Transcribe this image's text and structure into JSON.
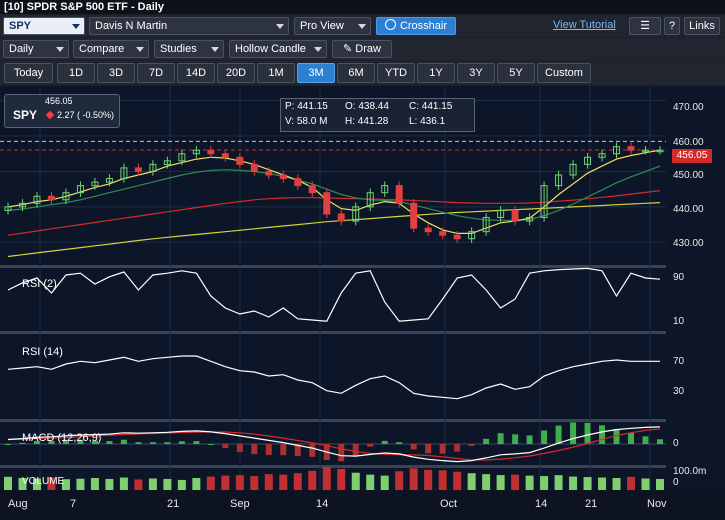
{
  "window": {
    "title": "[10]  SPDR S&P 500 ETF - Daily"
  },
  "toolbar1": {
    "symbol": "SPY",
    "account": "Davis N Martin",
    "view": "Pro View",
    "crosshair_label": "Crosshair",
    "tutorial_link": "View Tutorial",
    "help_label": "?",
    "links_label": "Links"
  },
  "toolbar2": {
    "interval": "Daily",
    "compare": "Compare",
    "studies": "Studies",
    "chart_style": "Hollow Candle",
    "draw": "Draw"
  },
  "ranges": {
    "today": "Today",
    "items": [
      "1D",
      "3D",
      "7D",
      "14D",
      "20D",
      "1M",
      "3M",
      "6M",
      "YTD",
      "1Y",
      "3Y",
      "5Y"
    ],
    "custom": "Custom",
    "active": "3M"
  },
  "quote": {
    "symbol": "SPY",
    "price": "456.05",
    "change": "2.27 ( -0.50%)",
    "direction_color": "#ff3b3b"
  },
  "ohlc": {
    "p": "P: 441.15",
    "o": "O: 438.44",
    "c": "C: 441.15",
    "v": "V: 58.0 M",
    "h": "H: 441.28",
    "l": "L: 436.1"
  },
  "price_axis": {
    "ticks": [
      "470.00",
      "460.00",
      "450.00",
      "440.00",
      "430.00"
    ],
    "last_price": "456.05"
  },
  "panels": {
    "rsi2": {
      "label": "RSI (2)",
      "ticks": [
        "90",
        "10"
      ]
    },
    "rsi14": {
      "label": "RSI (14)",
      "ticks": [
        "70",
        "30"
      ]
    },
    "macd": {
      "label": "MACD (12,26,9)",
      "ticks": [
        "0"
      ]
    },
    "volume": {
      "label": "VOLUME",
      "ticks": [
        "100.0m",
        "0"
      ]
    }
  },
  "x_axis": {
    "labels": [
      "Aug",
      "7",
      "21",
      "Sep",
      "14",
      "Oct",
      "14",
      "21",
      "Nov"
    ]
  },
  "chart_data": {
    "type": "candlestick",
    "title": "SPDR S&P 500 ETF - Daily",
    "ylim": [
      425,
      473
    ],
    "y_ticks": [
      430,
      440,
      450,
      460,
      470
    ],
    "close": [
      440,
      441,
      443,
      442,
      444,
      446,
      447,
      448,
      451,
      450,
      452,
      453,
      455,
      456,
      455,
      454,
      452,
      450,
      449,
      448,
      446,
      444,
      438,
      436,
      440,
      444,
      446,
      441,
      434,
      433,
      432,
      431,
      433,
      437,
      439,
      436,
      437,
      446,
      449,
      452,
      454,
      455,
      457,
      456,
      456,
      456
    ],
    "ma_short": [
      440,
      440.6,
      441.5,
      442,
      443,
      444.2,
      445.5,
      446.5,
      448,
      449,
      450,
      451.5,
      452.5,
      453.5,
      454,
      453.8,
      453,
      452,
      450.5,
      449,
      447.5,
      445.5,
      442,
      439.5,
      439,
      440.5,
      441.5,
      441,
      438,
      435.5,
      433.5,
      432.5,
      432.5,
      434,
      435.5,
      436,
      436.8,
      440,
      443.5,
      446.5,
      449.5,
      451.5,
      453.5,
      454.5,
      455.3,
      456
    ],
    "ma_medium": [
      439,
      439.4,
      440,
      440.6,
      441.2,
      442,
      443,
      444,
      445,
      446,
      447,
      448,
      449,
      449.8,
      450.3,
      450.5,
      450.3,
      450,
      449.4,
      448.6,
      447.6,
      446.5,
      445,
      443.5,
      442.5,
      442,
      441.8,
      441.5,
      440.5,
      439.5,
      438.5,
      437.5,
      436.8,
      436.3,
      436.2,
      436.2,
      436.4,
      437.5,
      439,
      440.8,
      442.8,
      444.8,
      446.8,
      448.5,
      450,
      451.5
    ],
    "ma_long": [
      432,
      432.6,
      433.2,
      433.8,
      434.4,
      435,
      435.6,
      436.2,
      436.8,
      437.4,
      438,
      438.6,
      439.2,
      439.8,
      440.4,
      441,
      441.5,
      442,
      442.3,
      442.5,
      442.6,
      442.6,
      442.5,
      442.4,
      442.3,
      442.2,
      442.1,
      442,
      441.8,
      441.6,
      441.4,
      441.2,
      441.1,
      441,
      441,
      441,
      441.1,
      441.3,
      441.6,
      441.9,
      442.3,
      442.7,
      443.1,
      443.6,
      444.1,
      444.6
    ],
    "ma_200": [
      426,
      426.5,
      427,
      427.5,
      428,
      428.5,
      429,
      429.5,
      430,
      430.5,
      431,
      431.4,
      431.8,
      432.2,
      432.6,
      433,
      433.4,
      433.8,
      434.2,
      434.6,
      435,
      435.4,
      435.8,
      436.1,
      436.4,
      436.7,
      437,
      437.3,
      437.6,
      437.9,
      438.2,
      438.4,
      438.6,
      438.8,
      439,
      439.2,
      439.4,
      439.6,
      439.8,
      440,
      440.2,
      440.4,
      440.6,
      440.8,
      441,
      441.2
    ],
    "rsi2": [
      60,
      72,
      80,
      55,
      85,
      88,
      70,
      82,
      90,
      60,
      85,
      88,
      92,
      88,
      50,
      30,
      20,
      25,
      15,
      30,
      12,
      10,
      8,
      55,
      88,
      92,
      40,
      8,
      10,
      12,
      45,
      80,
      85,
      60,
      30,
      45,
      88,
      92,
      94,
      95,
      96,
      92,
      50,
      88,
      80,
      78
    ],
    "rsi14": [
      60,
      61,
      62,
      60,
      64,
      66,
      65,
      67,
      69,
      66,
      68,
      69,
      70,
      70,
      66,
      62,
      59,
      58,
      55,
      56,
      52,
      50,
      44,
      42,
      48,
      53,
      55,
      50,
      42,
      40,
      39,
      38,
      41,
      46,
      49,
      45,
      47,
      55,
      59,
      62,
      64,
      66,
      67,
      66,
      66,
      66
    ],
    "macd": [
      1,
      1.2,
      1.5,
      1.6,
      1.8,
      2,
      2.1,
      2.2,
      2.5,
      2.4,
      2.5,
      2.6,
      2.8,
      2.9,
      2.7,
      2.3,
      1.8,
      1.3,
      0.8,
      0.3,
      -0.3,
      -0.9,
      -1.8,
      -2.6,
      -2.7,
      -2.3,
      -2,
      -2.2,
      -2.9,
      -3.4,
      -3.7,
      -3.9,
      -3.7,
      -3.1,
      -2.4,
      -2.2,
      -1.9,
      -0.9,
      0.2,
      1.2,
      2,
      2.7,
      3.2,
      3.5,
      3.7,
      3.8
    ],
    "volume": [
      55,
      50,
      48,
      52,
      45,
      47,
      50,
      46,
      52,
      44,
      48,
      46,
      42,
      50,
      56,
      60,
      62,
      58,
      66,
      64,
      70,
      80,
      95,
      88,
      72,
      64,
      60,
      78,
      90,
      84,
      82,
      76,
      70,
      66,
      62,
      64,
      60,
      58,
      62,
      56,
      54,
      52,
      50,
      55,
      48,
      46
    ]
  }
}
